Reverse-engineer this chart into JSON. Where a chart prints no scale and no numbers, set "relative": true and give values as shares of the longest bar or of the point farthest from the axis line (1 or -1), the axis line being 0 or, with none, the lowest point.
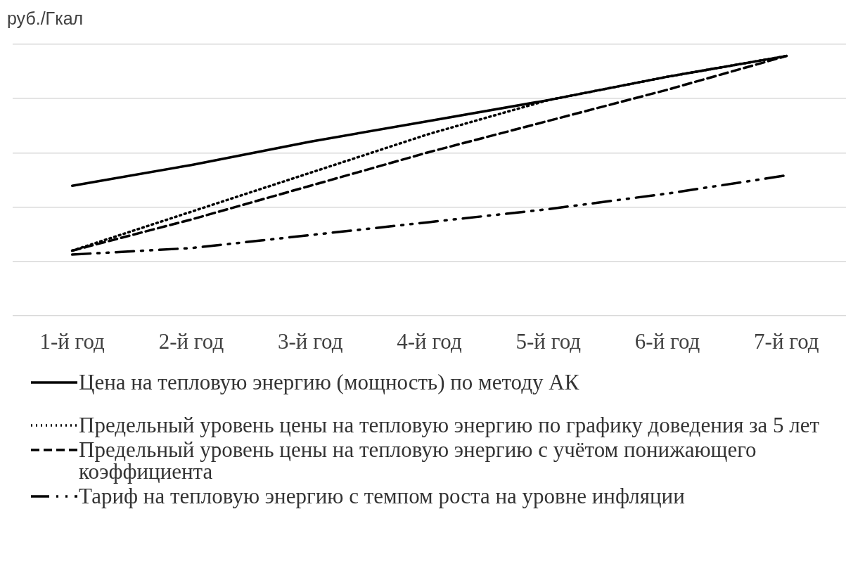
{
  "chart_data": {
    "type": "line",
    "relative": true,
    "ylabel": "руб./Гкал",
    "grid": "y",
    "legend": "bottom",
    "marker": "none",
    "categories": [
      "1-й год",
      "2-й год",
      "3-й год",
      "4-й год",
      "5-й год",
      "6-й год",
      "7-й год"
    ],
    "series": [
      {
        "name": "Цена на тепловую энергию (мощность) по методу АК",
        "color": "#000000",
        "line_style": "solid",
        "values": [
          0.5,
          0.58,
          0.67,
          0.75,
          0.83,
          0.92,
          1
        ]
      },
      {
        "name": "Предельный уровень цены на тепловую энергию по графику доведения за 5 лет",
        "color": "#000000",
        "line_style": "dotted",
        "values": [
          0.25,
          0.4,
          0.55,
          0.7,
          0.83,
          0.92,
          1
        ]
      },
      {
        "name": "Предельный уровень цены на тепловую энергию с учётом понижающего коэффициента",
        "color": "#000000",
        "line_style": "dashed",
        "values": [
          0.25,
          0.37,
          0.5,
          0.63,
          0.75,
          0.87,
          1
        ]
      },
      {
        "name": "Тариф на тепловую энергию с темпом роста на уровне инфляции",
        "color": "#000000",
        "line_style": "dashdot",
        "values": [
          0.235,
          0.26,
          0.31,
          0.36,
          0.41,
          0.47,
          0.54
        ]
      }
    ]
  }
}
